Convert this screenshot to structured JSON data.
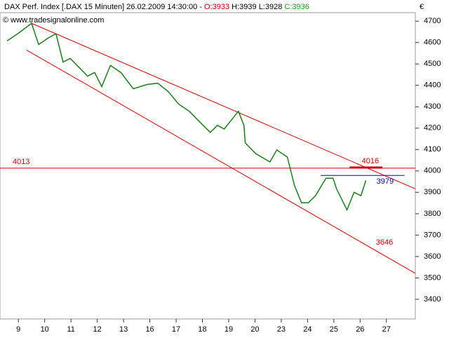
{
  "chart_data": {
    "type": "line",
    "header": {
      "instrument": "DAX Perf. Index [.DAX  15 Minuten]",
      "datetime": "26.02.2009 14:30:00 -",
      "open": "O:3933",
      "high": "H:3939",
      "low": "L:3928",
      "close": "C:3936"
    },
    "watermark": "© www.tradesignalonline.com",
    "currency": "€",
    "color": "#1f7a1f",
    "x": [
      0.07,
      0.47,
      1.0,
      1.27,
      1.67,
      1.93,
      2.2,
      2.47,
      2.87,
      3.13,
      3.4,
      3.67,
      4.0,
      4.4,
      4.87,
      5.4,
      5.8,
      6.2,
      6.6,
      7.0,
      7.4,
      7.8,
      8.07,
      8.33,
      8.87,
      9.08,
      9.13,
      9.53,
      10.07,
      10.33,
      10.73,
      11.0,
      11.27,
      11.53,
      11.8,
      12.2,
      12.47,
      12.6,
      13.0,
      13.27,
      13.53,
      13.72
    ],
    "values": [
      4608,
      4641,
      4690,
      4591,
      4624,
      4641,
      4509,
      4526,
      4476,
      4443,
      4460,
      4394,
      4493,
      4460,
      4384,
      4404,
      4410,
      4371,
      4312,
      4279,
      4229,
      4180,
      4213,
      4196,
      4279,
      4213,
      4131,
      4081,
      4042,
      4098,
      4065,
      3933,
      3851,
      3851,
      3884,
      3966,
      3966,
      3917,
      3818,
      3900,
      3884,
      3956
    ],
    "xlim": [
      -0.2,
      15.6
    ],
    "ylim": [
      3308,
      4740
    ],
    "yticks": [
      3400,
      3500,
      3600,
      3700,
      3800,
      3900,
      4000,
      4100,
      4200,
      4300,
      4400,
      4500,
      4600,
      4700
    ],
    "xticks": [
      {
        "value": 0.5,
        "label": "9"
      },
      {
        "value": 1.5,
        "label": "10"
      },
      {
        "value": 2.5,
        "label": "11"
      },
      {
        "value": 3.5,
        "label": "12"
      },
      {
        "value": 4.5,
        "label": "13"
      },
      {
        "value": 5.5,
        "label": "16"
      },
      {
        "value": 6.5,
        "label": "17"
      },
      {
        "value": 7.5,
        "label": "18"
      },
      {
        "value": 8.5,
        "label": "19"
      },
      {
        "value": 9.5,
        "label": "20"
      },
      {
        "value": 10.5,
        "label": "23"
      },
      {
        "value": 11.5,
        "label": "24"
      },
      {
        "value": 12.5,
        "label": "25"
      },
      {
        "value": 13.5,
        "label": "26"
      },
      {
        "value": 14.5,
        "label": "27"
      }
    ],
    "trendlines": [
      {
        "x": [
          1.0,
          15.59
        ],
        "y": [
          4690,
          3917
        ],
        "color": "#cc0000"
      },
      {
        "x": [
          0.81,
          15.59
        ],
        "y": [
          4565,
          3522
        ],
        "color": "#cc0000"
      }
    ],
    "levels": [
      {
        "value": 4013,
        "label": "4013",
        "color": "#cc0000",
        "x": [
          -0.2,
          15.6
        ]
      },
      {
        "value": 3979,
        "label": "3979",
        "color": "#0000cc",
        "x": [
          12.0,
          15.19
        ]
      },
      {
        "value": 4016,
        "label": "4016",
        "color": "#cc0000",
        "x": [
          13.1,
          14.35
        ]
      }
    ],
    "notes": [
      {
        "value": 3646,
        "label": "3646",
        "x": 14.1,
        "color": "#cc0000"
      }
    ]
  }
}
